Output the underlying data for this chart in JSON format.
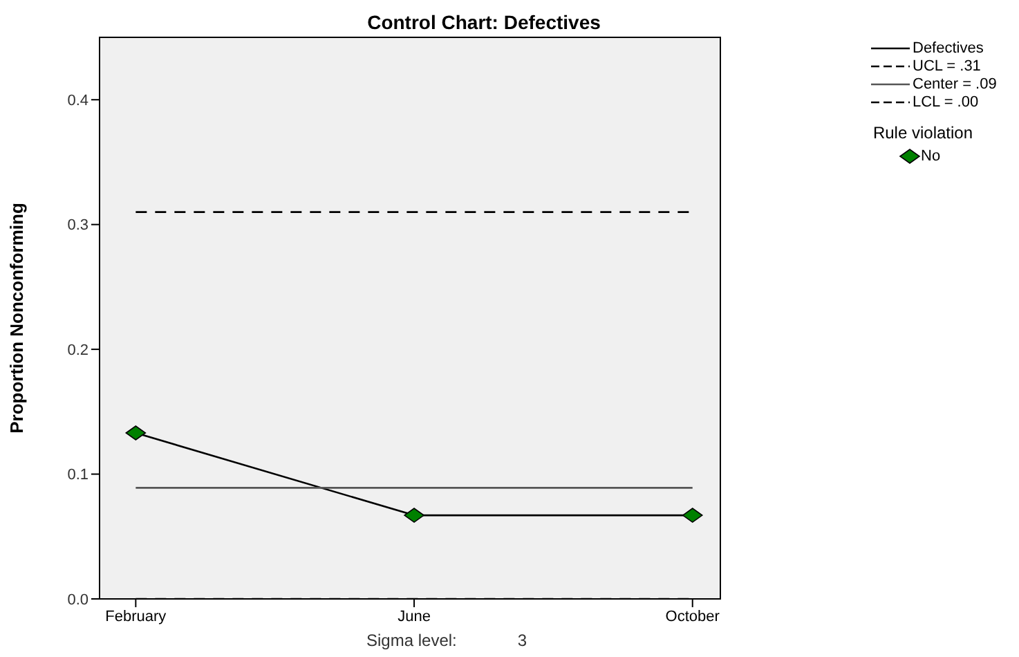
{
  "chart_data": {
    "type": "line",
    "title": "Control Chart: Defectives",
    "ylabel": "Proportion Nonconforming",
    "categories": [
      "February",
      "June",
      "October"
    ],
    "series": [
      {
        "name": "Defectives",
        "color": "#000000",
        "values": [
          0.133,
          0.067,
          0.067
        ],
        "line_style": "solid",
        "marker": "none"
      },
      {
        "name": "UCL = .31",
        "color": "#000000",
        "values": [
          0.31,
          0.31,
          0.31
        ],
        "line_style": "dashed",
        "marker": "none"
      },
      {
        "name": "Center = .09",
        "color": "#555555",
        "values": [
          0.089,
          0.089,
          0.089
        ],
        "line_style": "solid",
        "marker": "none"
      },
      {
        "name": "LCL = .00",
        "color": "#000000",
        "values": [
          0,
          0,
          0
        ],
        "line_style": "dashed",
        "marker": "none"
      },
      {
        "name": "No",
        "type": "scatter",
        "color": "#008000",
        "values": [
          0.133,
          0.067,
          0.067
        ],
        "marker": "diamond"
      }
    ],
    "legend_title": "Rule violation",
    "legend": "right",
    "ylim": [
      0,
      0.45
    ],
    "yticks": [
      {
        "value": 0,
        "label": "0.0"
      },
      {
        "value": 0.1,
        "label": "0.1"
      },
      {
        "value": 0.2,
        "label": "0.2"
      },
      {
        "value": 0.3,
        "label": "0.3"
      },
      {
        "value": 0.4,
        "label": "0.4"
      }
    ],
    "annotations": [
      "Sigma level:",
      "3"
    ]
  }
}
